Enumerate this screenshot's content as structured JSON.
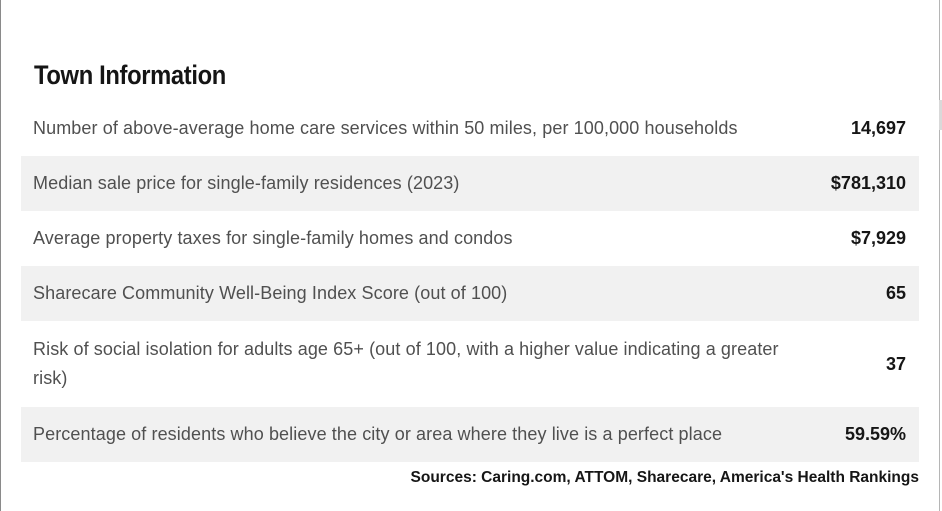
{
  "title": "Town Information",
  "rows": [
    {
      "label": "Number of above-average home care services within 50 miles, per 100,000 households",
      "value": "14,697"
    },
    {
      "label": "Median sale price for single-family residences (2023)",
      "value": "$781,310"
    },
    {
      "label": "Average property taxes for single-family homes and condos",
      "value": "$7,929"
    },
    {
      "label": "Sharecare Community Well-Being Index Score (out of 100)",
      "value": "65"
    },
    {
      "label": "Risk of social isolation for adults age 65+ (out of 100, with a higher value indicating a greater risk)",
      "value": "37"
    },
    {
      "label": "Percentage of residents who believe the city or area where they live is a perfect place",
      "value": "59.59%"
    }
  ],
  "sources": "Sources: Caring.com, ATTOM, Sharecare, America's Health Rankings"
}
